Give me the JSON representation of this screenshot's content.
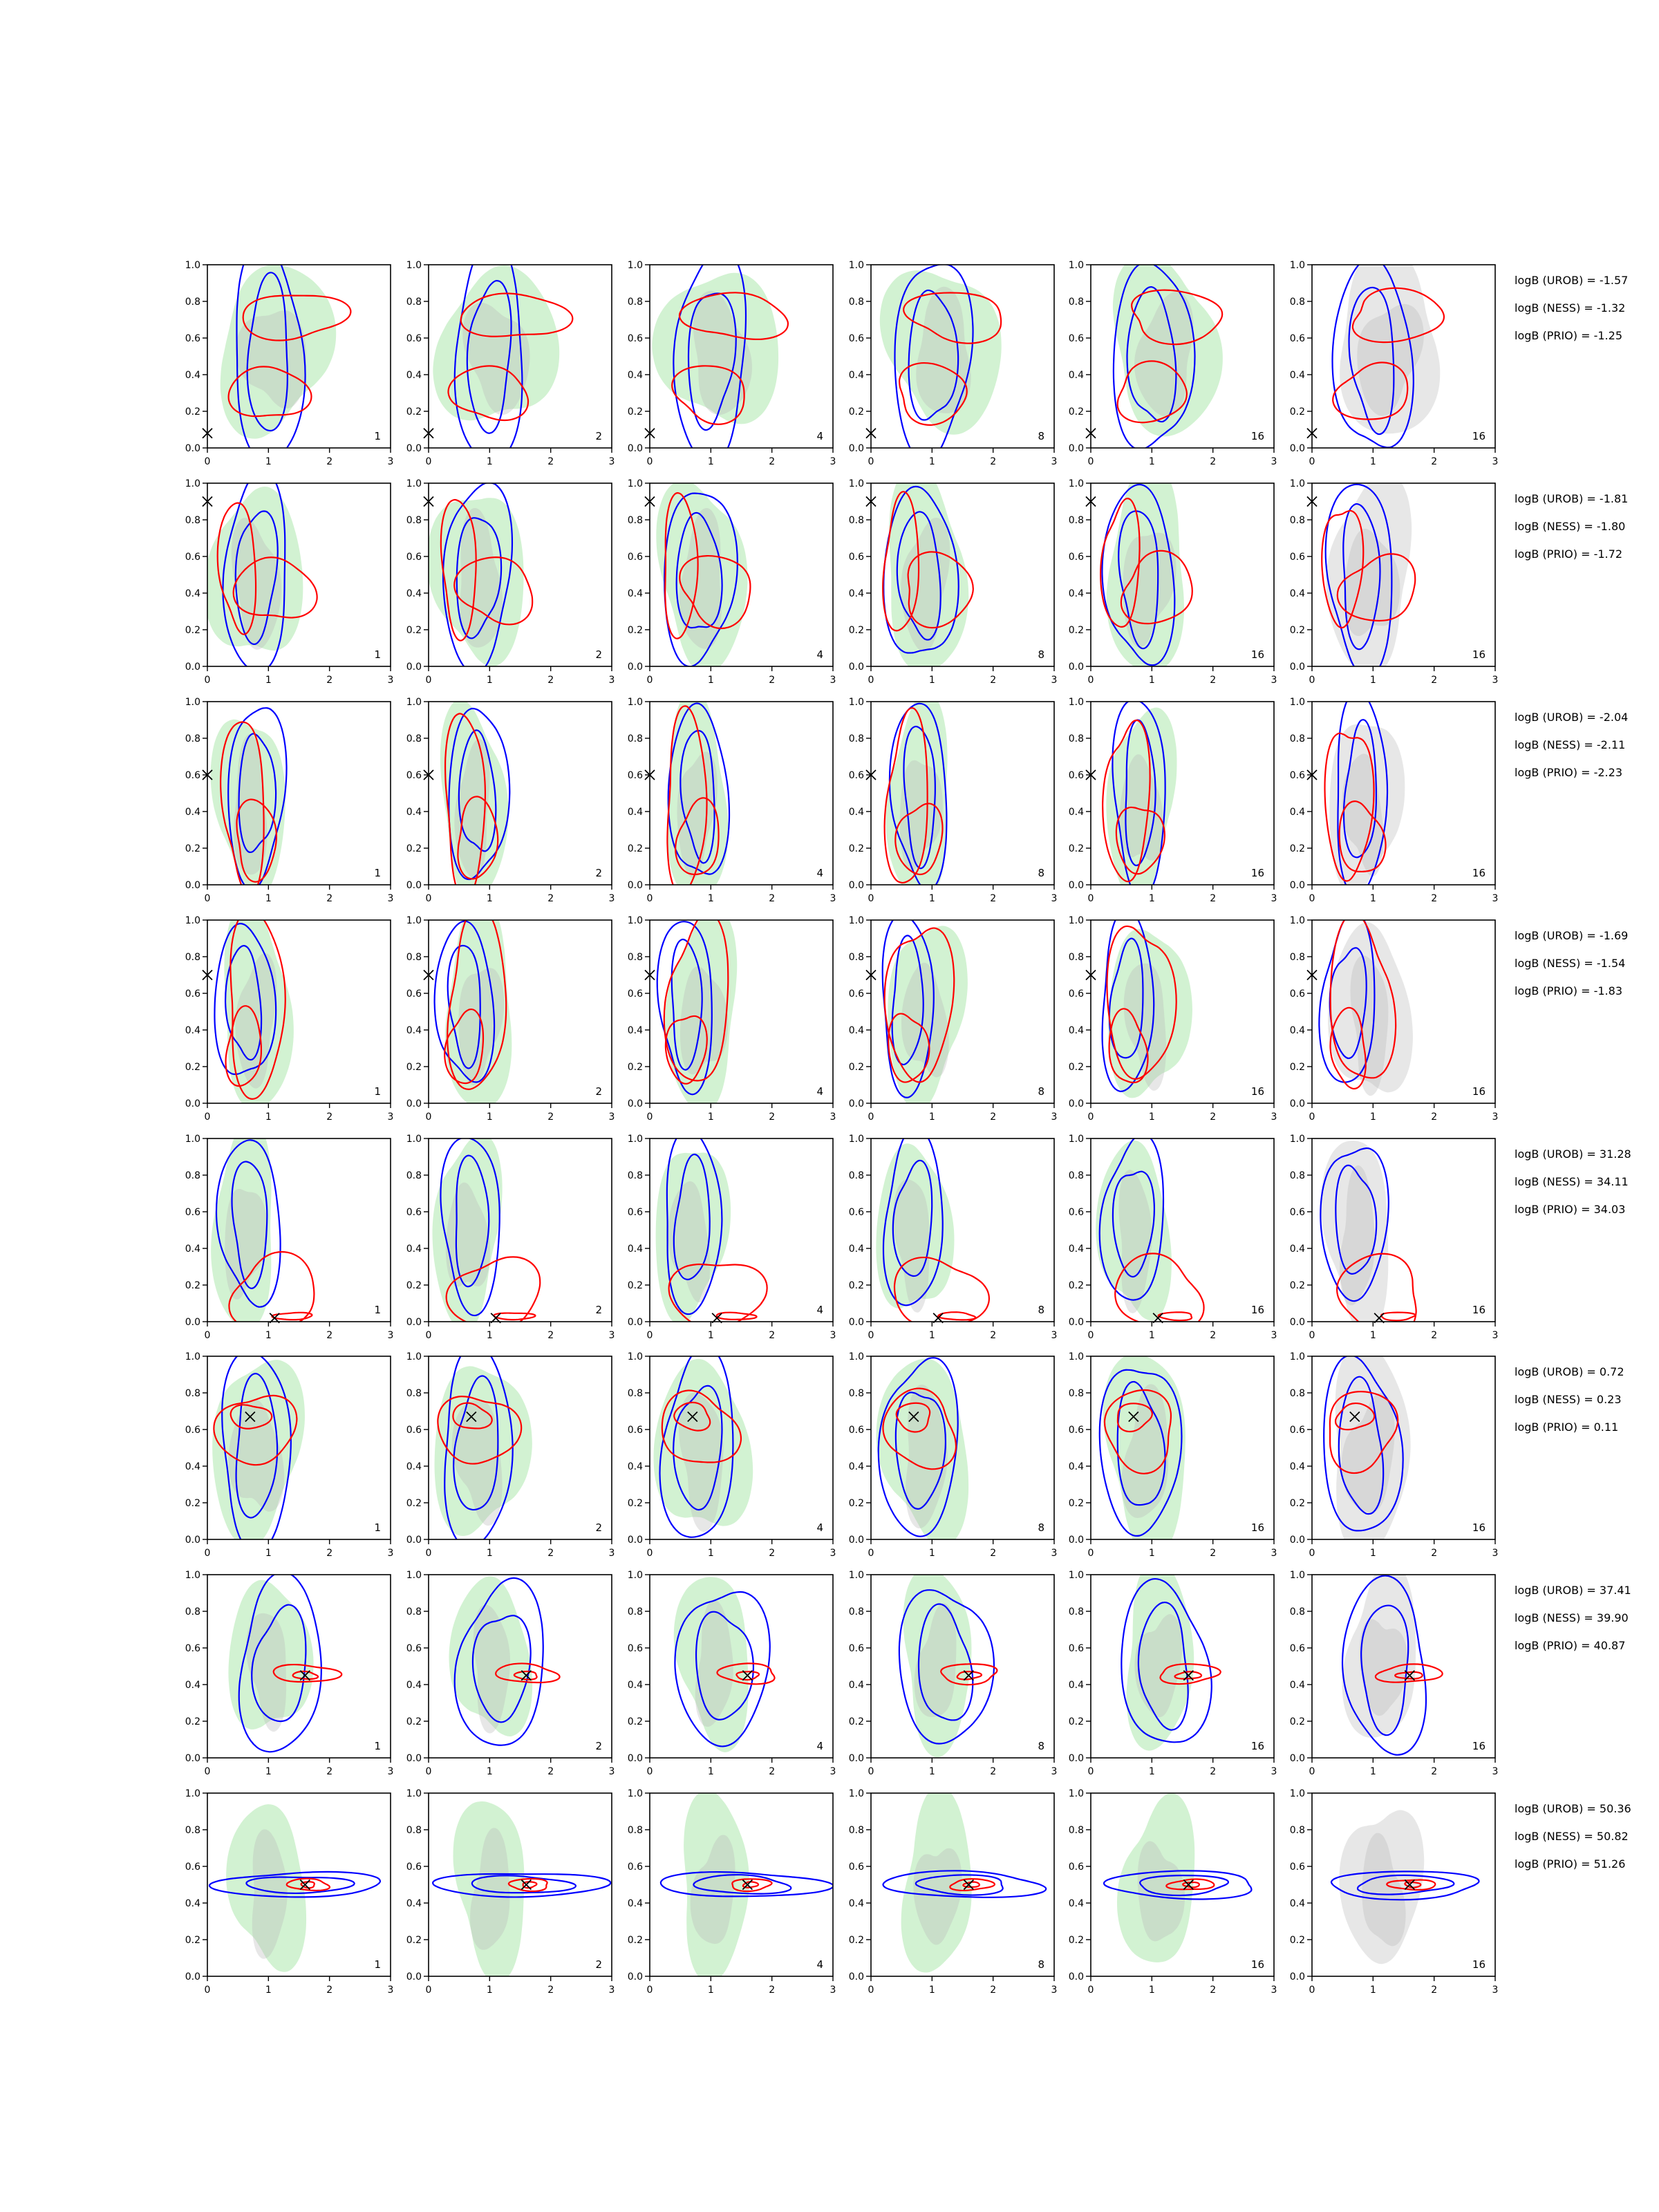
{
  "figure": {
    "columns": 6,
    "rows": 8,
    "subplot_type": "2D posterior contour plots (filled green/grey regions with blue and red contour lines, black x marker)",
    "x_ticks": [
      "0",
      "1",
      "2",
      "3"
    ],
    "y_ticks": [
      "0.0",
      "0.2",
      "0.4",
      "0.6",
      "0.8",
      "1.0"
    ],
    "colors": {
      "green_fill": "#9be39b",
      "grey_fill": "#b9b9b9",
      "blue_contour": "#0000ff",
      "red_contour": "#ff0000",
      "marker": "#000000"
    }
  },
  "chart_data": {
    "type": "contour-grid",
    "xlim": [
      0,
      3
    ],
    "ylim": [
      0,
      1
    ],
    "panel_labels_by_column": [
      "1",
      "2",
      "4",
      "8",
      "16",
      "16"
    ],
    "rows": [
      {
        "true_point": [
          0.0,
          0.08
        ],
        "scores": [
          "logB (UROB) = -1.57",
          "logB (NESS) = -1.32",
          "logB (PRIO) = -1.25"
        ]
      },
      {
        "true_point": [
          0.0,
          0.9
        ],
        "scores": [
          "logB (UROB) = -1.81",
          "logB (NESS) = -1.80",
          "logB (PRIO) = -1.72"
        ]
      },
      {
        "true_point": [
          0.0,
          0.6
        ],
        "scores": [
          "logB (UROB) = -2.04",
          "logB (NESS) = -2.11",
          "logB (PRIO) = -2.23"
        ]
      },
      {
        "true_point": [
          0.0,
          0.7
        ],
        "scores": [
          "logB (UROB) = -1.69",
          "logB (NESS) = -1.54",
          "logB (PRIO) = -1.83"
        ]
      },
      {
        "true_point": [
          1.1,
          0.02
        ],
        "scores": [
          "logB (UROB) = 31.28",
          "logB (NESS) = 34.11",
          "logB (PRIO) = 34.03"
        ]
      },
      {
        "true_point": [
          0.7,
          0.67
        ],
        "scores": [
          "logB (UROB) = 0.72",
          "logB (NESS) = 0.23",
          "logB (PRIO) = 0.11"
        ]
      },
      {
        "true_point": [
          1.6,
          0.45
        ],
        "scores": [
          "logB (UROB) = 37.41",
          "logB (NESS) = 39.90",
          "logB (PRIO) = 40.87"
        ]
      },
      {
        "true_point": [
          1.6,
          0.5
        ],
        "scores": [
          "logB (UROB) = 50.36",
          "logB (NESS) = 50.82",
          "logB (PRIO) = 51.26"
        ]
      }
    ]
  }
}
